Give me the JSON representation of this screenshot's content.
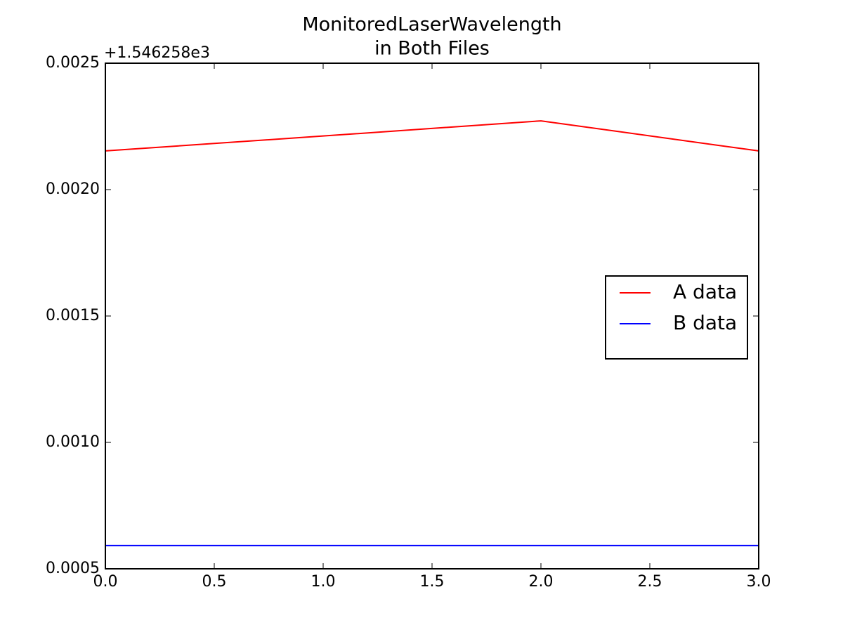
{
  "chart_data": {
    "type": "line",
    "title": "MonitoredLaserWavelength",
    "subtitle": "in Both Files",
    "offset_label": "+1.546258e3",
    "x": [
      0,
      1,
      2,
      3
    ],
    "series": [
      {
        "name": "A data",
        "color": "#ff0000",
        "values": [
          0.002153,
          0.002212,
          0.002272,
          0.002153
        ]
      },
      {
        "name": "B data",
        "color": "#0000ff",
        "values": [
          0.000592,
          0.000592,
          0.000592,
          0.000592
        ]
      }
    ],
    "xlim": [
      0,
      3
    ],
    "xticks": [
      {
        "value": 0,
        "label": "0.0"
      },
      0.5,
      {
        "value": 1,
        "label": "1.0"
      },
      1.5,
      {
        "value": 2,
        "label": "2.0"
      },
      2.5,
      {
        "value": 3,
        "label": "3.0"
      }
    ],
    "ylim": [
      0.0005,
      0.0025
    ],
    "yticks": [
      0.0005,
      {
        "value": 0.001,
        "label": "0.0010"
      },
      0.0015,
      {
        "value": 0.002,
        "label": "0.0020"
      },
      0.0025
    ],
    "grid": false,
    "legend": "center right"
  }
}
